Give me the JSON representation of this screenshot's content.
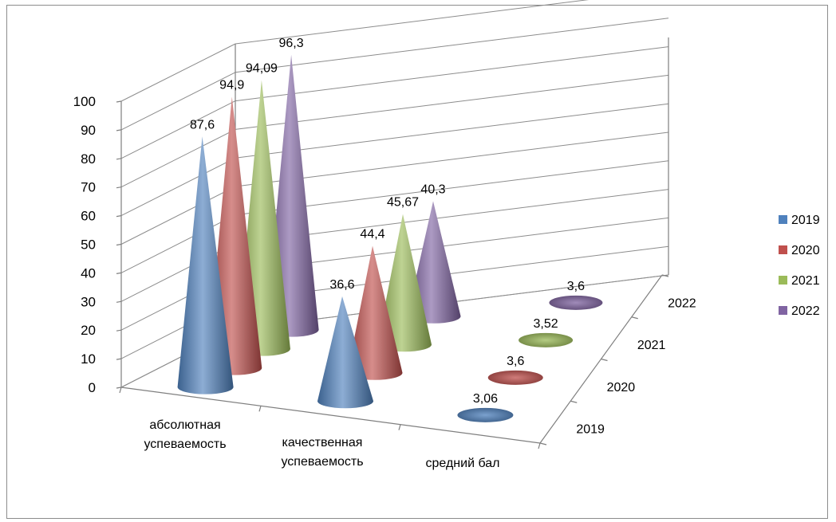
{
  "chart_data": {
    "type": "bar",
    "shape": "3d-cone",
    "title": "",
    "categories": [
      "абсолютная успеваемость",
      "качественная успеваемость",
      "средний бал"
    ],
    "category_lines": [
      [
        "абсолютная",
        "успеваемость"
      ],
      [
        "качественная",
        "успеваемость"
      ],
      [
        "средний бал"
      ]
    ],
    "depth_labels": [
      "2019",
      "2020",
      "2021",
      "2022"
    ],
    "series": [
      {
        "name": "2019",
        "values": [
          87.6,
          36.6,
          3.06
        ],
        "labels": [
          "87,6",
          "36,6",
          "3,06"
        ],
        "color": "#4f81bd"
      },
      {
        "name": "2020",
        "values": [
          94.9,
          44.4,
          3.6
        ],
        "labels": [
          "94,9",
          "44,4",
          "3,6"
        ],
        "color": "#c0504d"
      },
      {
        "name": "2021",
        "values": [
          94.09,
          45.67,
          3.52
        ],
        "labels": [
          "94,09",
          "45,67",
          "3,52"
        ],
        "color": "#9bbb59"
      },
      {
        "name": "2022",
        "values": [
          96.3,
          40.3,
          3.6
        ],
        "labels": [
          "96,3",
          "40,3",
          "3,6"
        ],
        "color": "#8064a2"
      }
    ],
    "yticks": [
      "0",
      "10",
      "20",
      "30",
      "40",
      "50",
      "60",
      "70",
      "80",
      "90",
      "100"
    ],
    "ylim": [
      0,
      100
    ],
    "grid": true,
    "legend_position": "right"
  }
}
